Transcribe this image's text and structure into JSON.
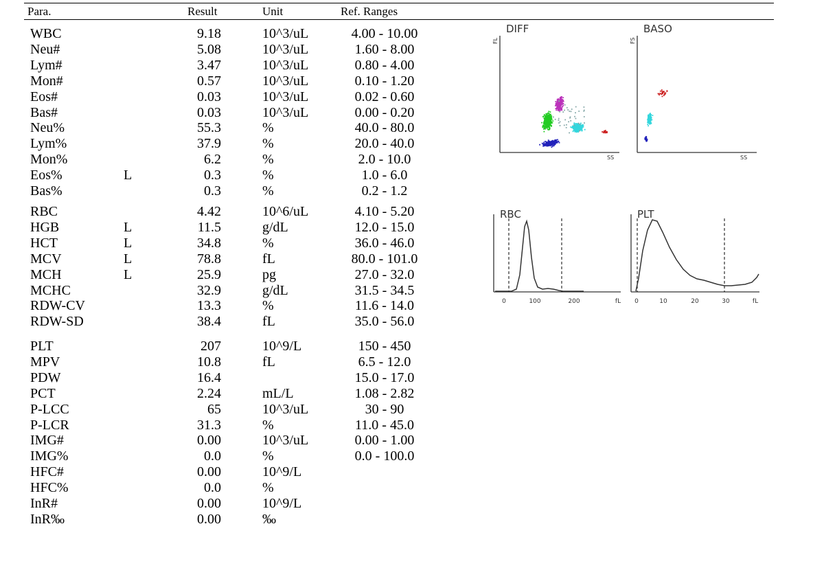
{
  "header": {
    "para": "Para.",
    "result": "Result",
    "unit": "Unit",
    "ref": "Ref. Ranges"
  },
  "rows": [
    {
      "name": "WBC",
      "flag": "",
      "result": "9.18",
      "unit": "10^3/uL",
      "ref": "4.00 - 10.00"
    },
    {
      "name": "Neu#",
      "flag": "",
      "result": "5.08",
      "unit": "10^3/uL",
      "ref": "1.60 - 8.00"
    },
    {
      "name": "Lym#",
      "flag": "",
      "result": "3.47",
      "unit": "10^3/uL",
      "ref": "0.80 - 4.00"
    },
    {
      "name": "Mon#",
      "flag": "",
      "result": "0.57",
      "unit": "10^3/uL",
      "ref": "0.10 - 1.20"
    },
    {
      "name": "Eos#",
      "flag": "",
      "result": "0.03",
      "unit": "10^3/uL",
      "ref": "0.02 - 0.60"
    },
    {
      "name": "Bas#",
      "flag": "",
      "result": "0.03",
      "unit": "10^3/uL",
      "ref": "0.00 - 0.20"
    },
    {
      "name": "Neu%",
      "flag": "",
      "result": "55.3",
      "unit": "%",
      "ref": "40.0 - 80.0"
    },
    {
      "name": "Lym%",
      "flag": "",
      "result": "37.9",
      "unit": "%",
      "ref": "20.0 - 40.0"
    },
    {
      "name": "Mon%",
      "flag": "",
      "result": "6.2",
      "unit": "%",
      "ref": "2.0 - 10.0"
    },
    {
      "name": "Eos%",
      "flag": "L",
      "result": "0.3",
      "unit": "%",
      "ref": "1.0 - 6.0"
    },
    {
      "name": "Bas%",
      "flag": "",
      "result": "0.3",
      "unit": "%",
      "ref": "0.2 - 1.2"
    },
    {
      "name": "RBC",
      "flag": "",
      "result": "4.42",
      "unit": "10^6/uL",
      "ref": "4.10 - 5.20"
    },
    {
      "name": "HGB",
      "flag": "L",
      "result": "11.5",
      "unit": "g/dL",
      "ref": "12.0 - 15.0"
    },
    {
      "name": "HCT",
      "flag": "L",
      "result": "34.8",
      "unit": "%",
      "ref": "36.0 - 46.0"
    },
    {
      "name": "MCV",
      "flag": "L",
      "result": "78.8",
      "unit": "fL",
      "ref": "80.0 - 101.0"
    },
    {
      "name": "MCH",
      "flag": "L",
      "result": "25.9",
      "unit": "pg",
      "ref": "27.0 - 32.0"
    },
    {
      "name": "MCHC",
      "flag": "",
      "result": "32.9",
      "unit": "g/dL",
      "ref": "31.5 - 34.5"
    },
    {
      "name": "RDW-CV",
      "flag": "",
      "result": "13.3",
      "unit": "%",
      "ref": "11.6 - 14.0"
    },
    {
      "name": "RDW-SD",
      "flag": "",
      "result": "38.4",
      "unit": "fL",
      "ref": "35.0 - 56.0"
    },
    {
      "name": "PLT",
      "flag": "",
      "result": "207",
      "unit": "10^9/L",
      "ref": "150 - 450"
    },
    {
      "name": "MPV",
      "flag": "",
      "result": "10.8",
      "unit": "fL",
      "ref": "6.5 - 12.0"
    },
    {
      "name": "PDW",
      "flag": "",
      "result": "16.4",
      "unit": "",
      "ref": "15.0 - 17.0"
    },
    {
      "name": "PCT",
      "flag": "",
      "result": "2.24",
      "unit": "mL/L",
      "ref": "1.08 - 2.82"
    },
    {
      "name": "P-LCC",
      "flag": "",
      "result": "65",
      "unit": "10^3/uL",
      "ref": "30 - 90"
    },
    {
      "name": "P-LCR",
      "flag": "",
      "result": "31.3",
      "unit": "%",
      "ref": "11.0 - 45.0"
    },
    {
      "name": "IMG#",
      "flag": "",
      "result": "0.00",
      "unit": "10^3/uL",
      "ref": "0.00 - 1.00"
    },
    {
      "name": "IMG%",
      "flag": "",
      "result": "0.0",
      "unit": "%",
      "ref": "0.0 - 100.0"
    },
    {
      "name": "HFC#",
      "flag": "",
      "result": "0.00",
      "unit": "10^9/L",
      "ref": ""
    },
    {
      "name": "HFC%",
      "flag": "",
      "result": "0.0",
      "unit": "%",
      "ref": ""
    },
    {
      "name": "InR#",
      "flag": "",
      "result": "0.00",
      "unit": "10^9/L",
      "ref": ""
    },
    {
      "name": "InR‰",
      "flag": "",
      "result": "0.00",
      "unit": "‰",
      "ref": ""
    }
  ],
  "plots": {
    "diff": {
      "title": "DIFF",
      "x_label": "SS",
      "y_label": "FL"
    },
    "baso": {
      "title": "BASO",
      "x_label": "SS",
      "y_label": "FS"
    },
    "rbc": {
      "title": "RBC",
      "ticks": [
        "0",
        "100",
        "200"
      ],
      "unit": "fL",
      "discriminators_fl": [
        25,
        170
      ]
    },
    "plt": {
      "title": "PLT",
      "ticks": [
        "0",
        "10",
        "20",
        "30"
      ],
      "unit": "fL",
      "discriminators_fl": [
        2,
        29
      ]
    }
  },
  "colors": {
    "neu": "#22cc22",
    "lym": "#2222bb",
    "mon": "#bb33bb",
    "eos": "#33d6dd",
    "bas": "#cc2222"
  }
}
